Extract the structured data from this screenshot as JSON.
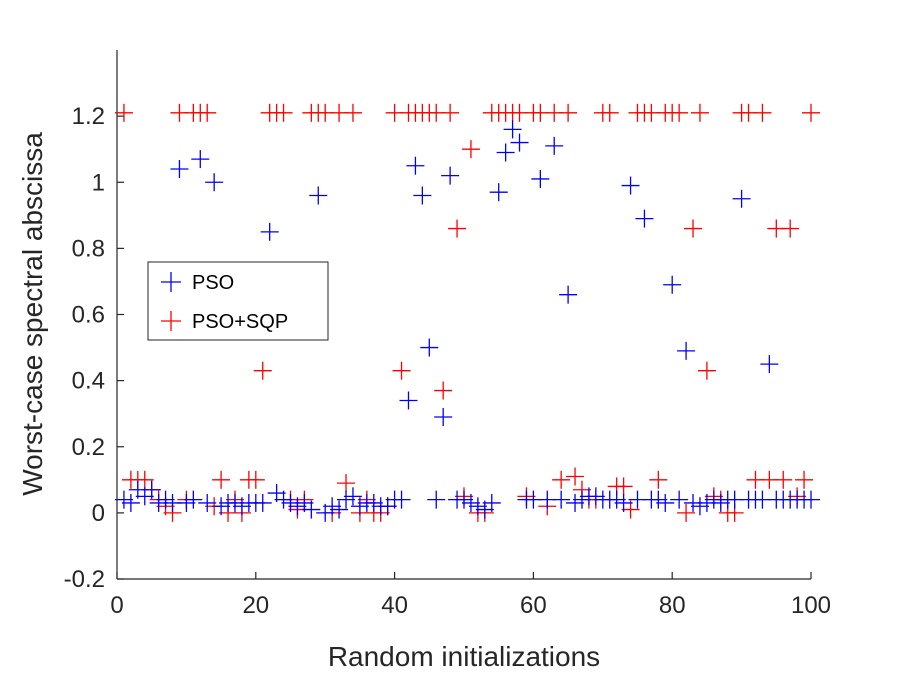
{
  "chart_data": {
    "type": "scatter",
    "title": "",
    "xlabel": "Random initializations",
    "ylabel": "Worst-case spectral abscissa",
    "xlim": [
      0,
      100
    ],
    "ylim": [
      -0.2,
      1.4
    ],
    "xticks": [
      0,
      20,
      40,
      60,
      80,
      100
    ],
    "yticks": [
      -0.2,
      0,
      0.2,
      0.4,
      0.6,
      0.8,
      1,
      1.2
    ],
    "xtick_labels": [
      "0",
      "20",
      "40",
      "60",
      "80",
      "100"
    ],
    "ytick_labels": [
      "-0.2",
      "0",
      "0.2",
      "0.4",
      "0.6",
      "0.8",
      "1",
      "1.2"
    ],
    "grid": false,
    "legend_position": "middle-left",
    "marker": "plus",
    "series": [
      {
        "name": "PSO",
        "color": "#0000ff",
        "x": [
          1,
          2,
          3,
          4,
          5,
          6,
          7,
          8,
          9,
          10,
          11,
          12,
          13,
          14,
          15,
          16,
          17,
          18,
          19,
          20,
          21,
          22,
          23,
          24,
          25,
          26,
          27,
          28,
          29,
          30,
          31,
          32,
          33,
          34,
          35,
          36,
          37,
          38,
          39,
          40,
          41,
          42,
          43,
          44,
          45,
          46,
          47,
          48,
          49,
          50,
          51,
          52,
          53,
          54,
          55,
          56,
          57,
          58,
          59,
          60,
          61,
          62,
          63,
          64,
          65,
          66,
          67,
          68,
          69,
          70,
          71,
          72,
          73,
          74,
          75,
          76,
          77,
          78,
          79,
          80,
          81,
          82,
          83,
          84,
          85,
          86,
          87,
          88,
          89,
          90,
          91,
          92,
          93,
          94,
          95,
          96,
          97,
          98,
          99,
          100
        ],
        "values": [
          0.04,
          0.03,
          0.07,
          0.05,
          0.07,
          0.03,
          0.04,
          0.03,
          1.04,
          0.03,
          0.04,
          1.07,
          0.03,
          1.0,
          0.02,
          0.03,
          0.03,
          0.02,
          0.03,
          0.03,
          0.03,
          0.85,
          0.06,
          0.04,
          0.03,
          0.02,
          0.03,
          0.01,
          0.96,
          0.0,
          0.02,
          0.01,
          0.04,
          0.05,
          0.02,
          0.03,
          0.03,
          0.02,
          0.02,
          0.04,
          0.04,
          0.34,
          1.05,
          0.96,
          0.5,
          0.04,
          0.29,
          1.02,
          0.04,
          0.04,
          0.03,
          0.02,
          0.01,
          0.03,
          0.97,
          1.09,
          1.16,
          1.12,
          0.04,
          0.04,
          1.01,
          0.04,
          1.11,
          0.04,
          0.66,
          0.03,
          0.04,
          0.05,
          0.05,
          0.04,
          0.04,
          0.04,
          0.03,
          0.99,
          0.04,
          0.89,
          0.04,
          0.04,
          0.03,
          0.69,
          0.04,
          0.49,
          0.03,
          0.02,
          0.03,
          0.04,
          0.03,
          0.04,
          0.04,
          0.95,
          0.04,
          0.04,
          0.04,
          0.45,
          0.04,
          0.04,
          0.04,
          0.04,
          0.04,
          0.04
        ]
      },
      {
        "name": "PSO+SQP",
        "color": "#ff0000",
        "x": [
          1,
          2,
          3,
          4,
          5,
          6,
          7,
          8,
          9,
          10,
          11,
          12,
          13,
          14,
          15,
          16,
          17,
          18,
          19,
          20,
          21,
          22,
          23,
          24,
          25,
          26,
          27,
          28,
          29,
          30,
          31,
          32,
          33,
          34,
          35,
          36,
          37,
          38,
          39,
          40,
          41,
          42,
          43,
          44,
          45,
          46,
          47,
          48,
          49,
          50,
          51,
          52,
          53,
          54,
          55,
          56,
          57,
          58,
          59,
          60,
          61,
          62,
          63,
          64,
          65,
          66,
          67,
          68,
          69,
          70,
          71,
          72,
          73,
          74,
          75,
          76,
          77,
          78,
          79,
          80,
          81,
          82,
          83,
          84,
          85,
          86,
          87,
          88,
          89,
          90,
          91,
          92,
          93,
          94,
          95,
          96,
          97,
          98,
          99,
          100
        ],
        "values": [
          1.21,
          0.1,
          0.1,
          0.1,
          0.07,
          0.04,
          0.02,
          0.0,
          1.21,
          0.04,
          1.21,
          1.21,
          1.21,
          0.02,
          0.1,
          0.0,
          0.04,
          0.0,
          0.1,
          0.1,
          0.43,
          1.21,
          1.21,
          1.21,
          0.04,
          0.01,
          0.04,
          1.21,
          1.21,
          1.21,
          0.0,
          1.21,
          0.09,
          1.21,
          0.0,
          0.04,
          0.0,
          0.0,
          0.02,
          1.21,
          0.43,
          1.21,
          1.21,
          1.21,
          1.21,
          1.21,
          0.37,
          1.21,
          0.86,
          0.05,
          1.1,
          0.0,
          0.0,
          1.21,
          1.21,
          1.21,
          1.21,
          1.21,
          0.05,
          1.21,
          1.21,
          0.02,
          1.21,
          0.1,
          1.21,
          0.11,
          0.07,
          0.04,
          0.04,
          1.21,
          1.21,
          0.08,
          0.08,
          0.01,
          1.21,
          1.21,
          1.21,
          0.1,
          1.21,
          1.21,
          1.21,
          0.0,
          0.86,
          1.21,
          0.43,
          0.05,
          0.04,
          0.0,
          0.0,
          1.21,
          1.21,
          0.1,
          1.21,
          0.1,
          0.86,
          0.1,
          0.86,
          0.05,
          0.1,
          1.21
        ]
      }
    ]
  }
}
